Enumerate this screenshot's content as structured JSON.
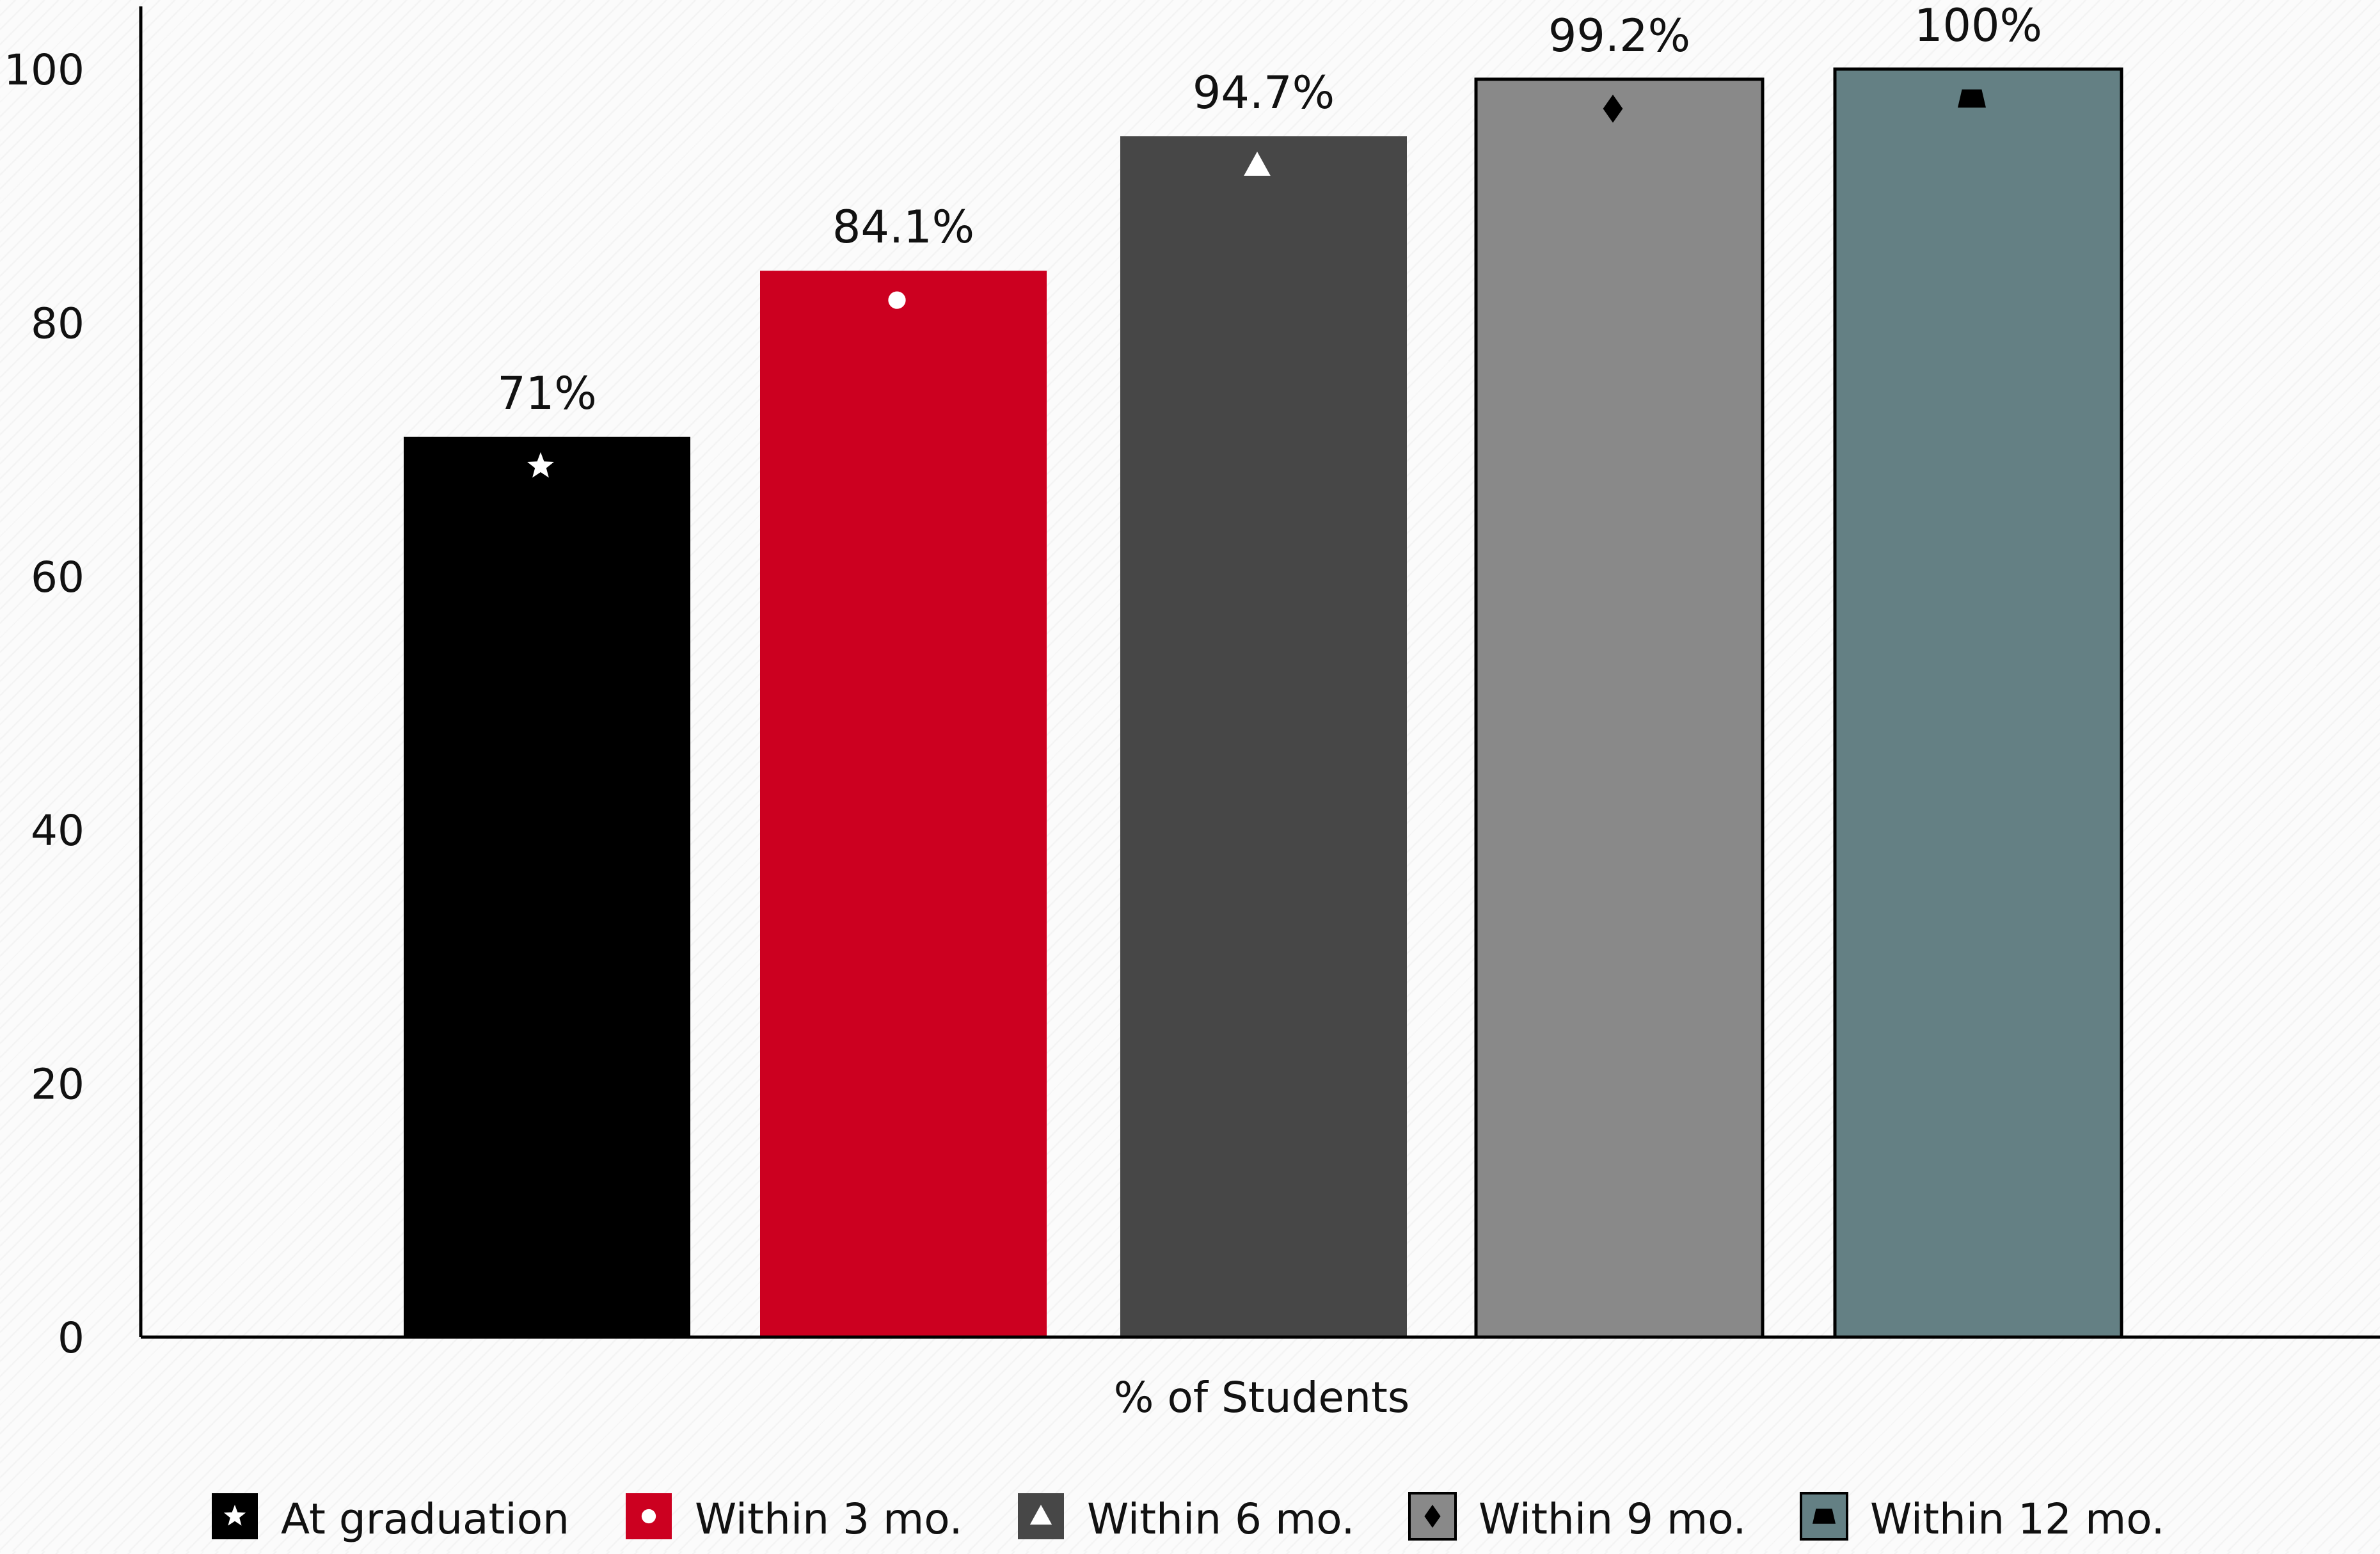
{
  "chart_data": {
    "type": "bar",
    "title": "",
    "xlabel": "% of Students",
    "ylabel": "",
    "ylim": [
      0,
      100
    ],
    "yticks": [
      0,
      20,
      40,
      60,
      80,
      100
    ],
    "categories": [
      "At graduation",
      "Within 3 mo.",
      "Within 6 mo.",
      "Within 9 mo.",
      "Within 12 mo."
    ],
    "values": [
      71,
      84.1,
      94.7,
      99.2,
      100
    ],
    "data_labels": [
      "71%",
      "84.1%",
      "94.7%",
      "99.2%",
      "100%"
    ],
    "colors": [
      "#000000",
      "#cc0020",
      "#474747",
      "#898989",
      "#648084"
    ],
    "markers": [
      "star-icon",
      "circle-icon",
      "triangle-icon",
      "diamond-icon",
      "trapezoid-icon"
    ],
    "grid": false,
    "legend_position": "bottom"
  }
}
